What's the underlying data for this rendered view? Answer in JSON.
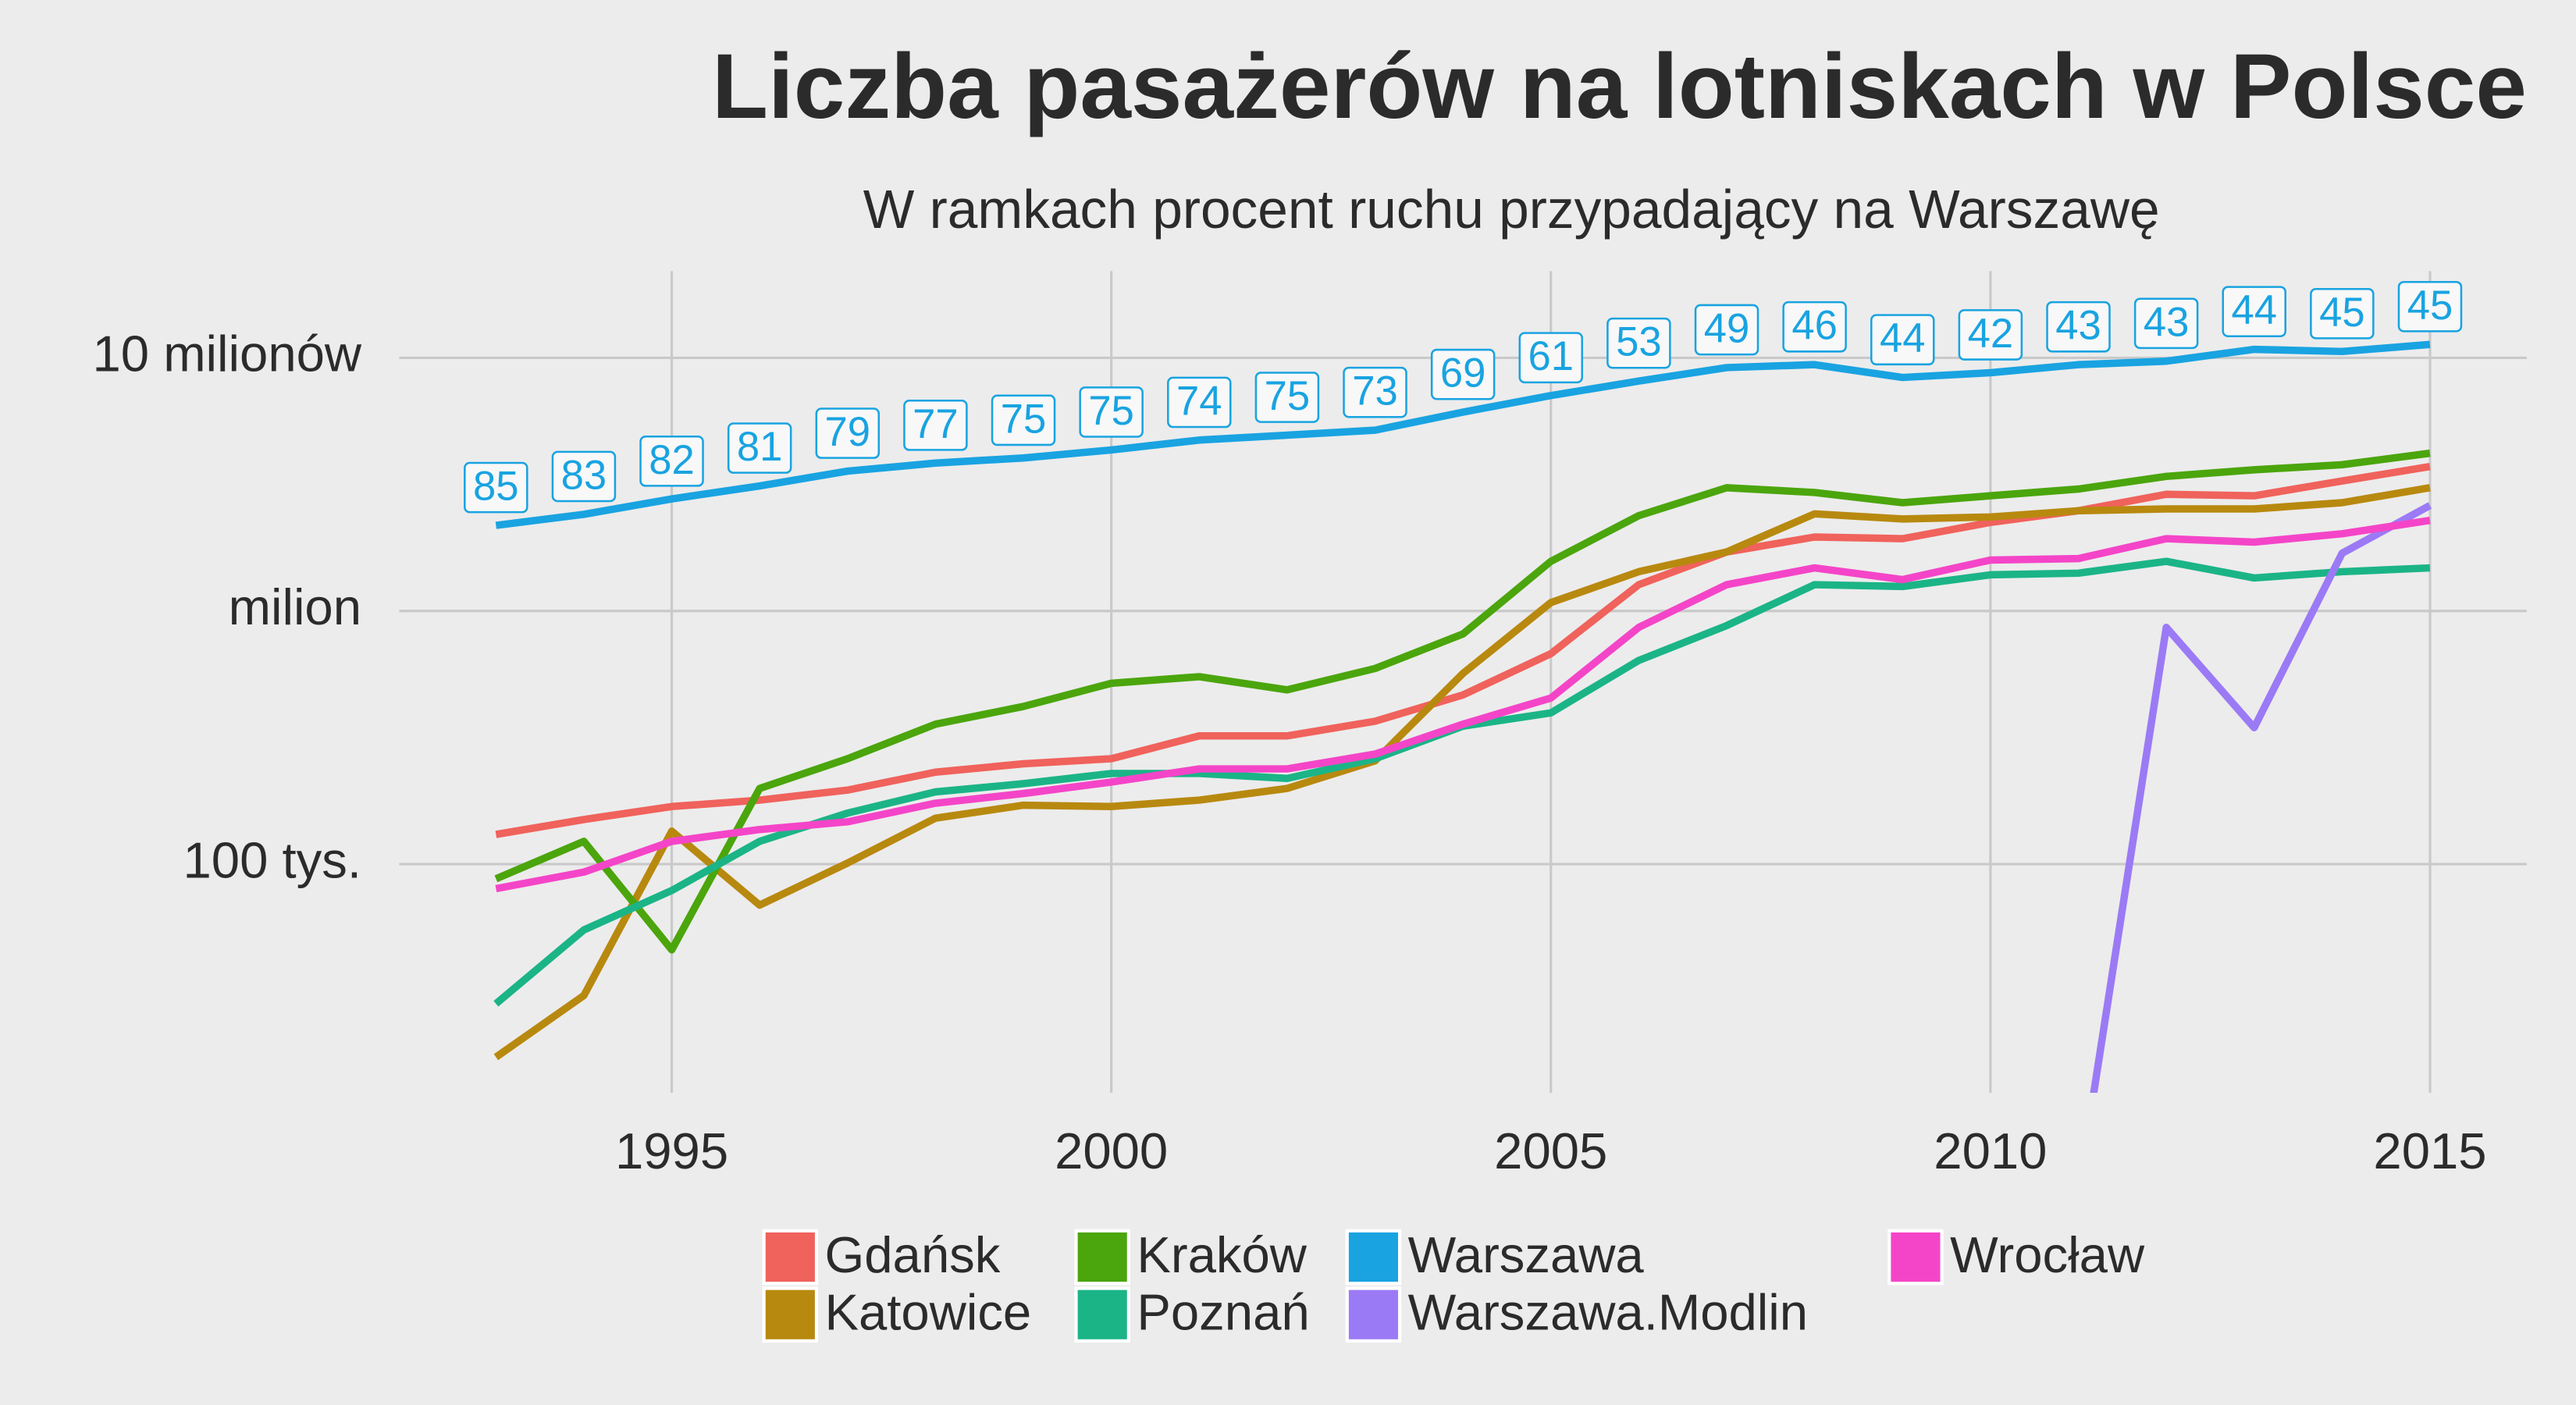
{
  "chart_data": {
    "type": "line",
    "title": "Liczba pasażerów na lotniskach w Polsce",
    "subtitle": "W ramkach procent ruchu przypadający na Warszawę",
    "x": [
      1993,
      1994,
      1995,
      1996,
      1997,
      1998,
      1999,
      2000,
      2001,
      2002,
      2003,
      2004,
      2005,
      2006,
      2007,
      2008,
      2009,
      2010,
      2011,
      2012,
      2013,
      2014,
      2015
    ],
    "xlim": [
      1991.9,
      2016.1
    ],
    "xticks": [
      1995,
      2000,
      2005,
      2010,
      2015
    ],
    "ylim": [
      12500,
      22000000
    ],
    "yticks": [
      {
        "value": 100000,
        "label": "100 tys."
      },
      {
        "value": 1000000,
        "label": "milion"
      },
      {
        "value": 10000000,
        "label": "10 milionów"
      }
    ],
    "log_scale": true,
    "grid": true,
    "series": [
      {
        "name": "Gdańsk",
        "color": "#f0625c",
        "values": [
          131000,
          150000,
          169000,
          179000,
          196000,
          231000,
          249000,
          261000,
          321000,
          321000,
          367000,
          466000,
          678000,
          1270000,
          1710000,
          1960000,
          1930000,
          2240000,
          2490000,
          2890000,
          2850000,
          3260000,
          3720000
        ]
      },
      {
        "name": "Katowice",
        "color": "#b8890f",
        "values": [
          17300,
          30300,
          135000,
          68900,
          101000,
          152000,
          171000,
          169000,
          179000,
          199000,
          256000,
          567000,
          1080000,
          1430000,
          1710000,
          2420000,
          2310000,
          2350000,
          2490000,
          2530000,
          2530000,
          2680000,
          3070000
        ]
      },
      {
        "name": "Kraków",
        "color": "#4ba50c",
        "values": [
          87500,
          123000,
          45900,
          199000,
          261000,
          357000,
          420000,
          518000,
          550000,
          488000,
          593000,
          811000,
          1570000,
          2380000,
          3070000,
          2940000,
          2680000,
          2850000,
          3030000,
          3400000,
          3610000,
          3780000,
          4200000
        ]
      },
      {
        "name": "Poznań",
        "color": "#1bb487",
        "values": [
          28100,
          55000,
          78700,
          123000,
          159000,
          193000,
          208000,
          228000,
          228000,
          218000,
          261000,
          351000,
          396000,
          638000,
          875000,
          1270000,
          1250000,
          1390000,
          1410000,
          1570000,
          1350000,
          1430000,
          1480000
        ]
      },
      {
        "name": "Warszawa",
        "color": "#19a3e1",
        "values": [
          2180000,
          2410000,
          2770000,
          3120000,
          3570000,
          3840000,
          4020000,
          4330000,
          4730000,
          4950000,
          5180000,
          6100000,
          7100000,
          8100000,
          9150000,
          9400000,
          8360000,
          8740000,
          9400000,
          9700000,
          10800000,
          10600000,
          11300000
        ],
        "labels": [
          85,
          83,
          82,
          81,
          79,
          77,
          75,
          75,
          74,
          75,
          73,
          69,
          61,
          53,
          49,
          46,
          44,
          42,
          43,
          43,
          44,
          45,
          45
        ]
      },
      {
        "name": "Warszawa.Modlin",
        "color": "#9b7af5",
        "values": [
          null,
          null,
          null,
          null,
          null,
          null,
          null,
          null,
          null,
          null,
          null,
          null,
          null,
          null,
          null,
          null,
          null,
          null,
          0,
          861000,
          346000,
          1690000,
          2610000
        ]
      },
      {
        "name": "Wrocław",
        "color": "#f445c8",
        "values": [
          80000,
          93000,
          123000,
          137000,
          147000,
          174000,
          190000,
          211000,
          238000,
          238000,
          272000,
          357000,
          453000,
          861000,
          1270000,
          1480000,
          1330000,
          1590000,
          1610000,
          1930000,
          1870000,
          2020000,
          2280000
        ]
      }
    ]
  }
}
